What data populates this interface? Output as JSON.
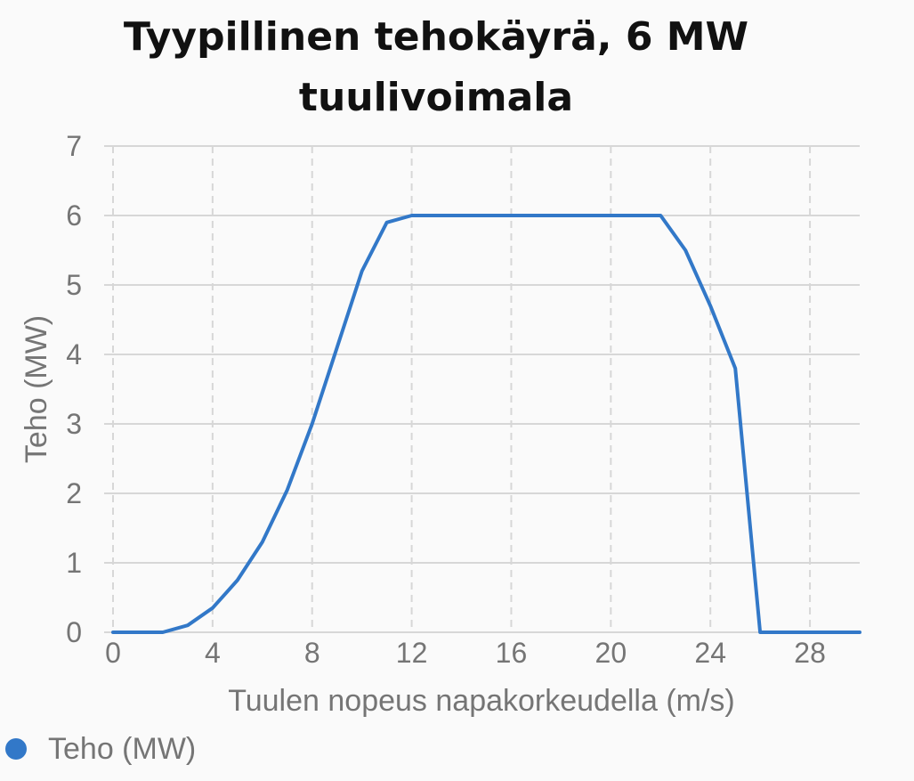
{
  "chart_data": {
    "type": "line",
    "title": "Tyypillinen tehokäyrä, 6 MW tuulivoimala",
    "xlabel": "Tuulen nopeus napakorkeudella (m/s)",
    "ylabel": "Teho (MW)",
    "xlim": [
      0,
      30
    ],
    "ylim": [
      0,
      7
    ],
    "x_ticks": [
      0,
      4,
      8,
      12,
      16,
      20,
      24,
      28
    ],
    "y_ticks": [
      0,
      1,
      2,
      3,
      4,
      5,
      6,
      7
    ],
    "grid": true,
    "legend_position": "bottom-left",
    "series": [
      {
        "name": "Teho (MW)",
        "color": "#3278c8",
        "x": [
          0,
          1,
          2,
          3,
          4,
          5,
          6,
          7,
          8,
          9,
          10,
          11,
          12,
          13,
          14,
          15,
          16,
          17,
          18,
          19,
          20,
          21,
          22,
          23,
          24,
          25,
          26,
          27,
          28,
          29,
          30
        ],
        "y": [
          0,
          0,
          0,
          0.1,
          0.35,
          0.75,
          1.3,
          2.05,
          3.0,
          4.1,
          5.2,
          5.9,
          6.0,
          6.0,
          6.0,
          6.0,
          6.0,
          6.0,
          6.0,
          6.0,
          6.0,
          6.0,
          6.0,
          5.5,
          4.7,
          3.8,
          0,
          0,
          0,
          0,
          0
        ]
      }
    ]
  }
}
